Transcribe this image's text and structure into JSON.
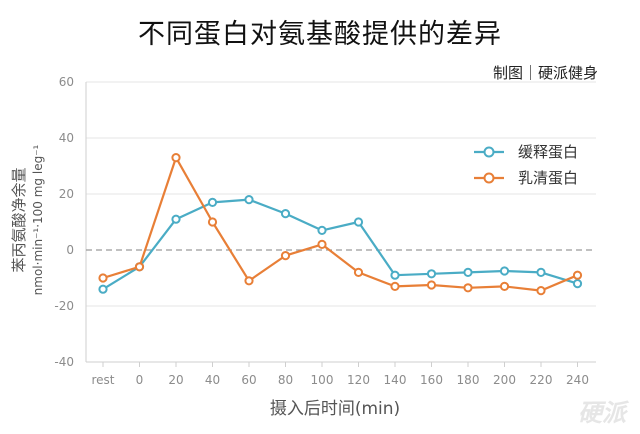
{
  "title": "不同蛋白对氨基酸提供的差异",
  "credit": "制图｜硬派健身",
  "watermark": "硬派",
  "chart_data": {
    "type": "line",
    "categories": [
      "rest",
      "0",
      "20",
      "40",
      "60",
      "80",
      "100",
      "120",
      "140",
      "160",
      "180",
      "200",
      "220",
      "240"
    ],
    "series": [
      {
        "name": "缓释蛋白",
        "color": "#4aacc5",
        "values": [
          -14,
          -6,
          11,
          17,
          18,
          13,
          7,
          10,
          -9,
          -8.5,
          -8,
          -7.5,
          -8,
          -12
        ]
      },
      {
        "name": "乳清蛋白",
        "color": "#e87f37",
        "values": [
          -10,
          -6,
          33,
          10,
          -11,
          -2,
          2,
          -8,
          -13,
          -12.5,
          -13.5,
          -13,
          -14.5,
          -9
        ]
      }
    ],
    "xlabel": "摄入后时间(min)",
    "ylabel": "苯丙氨酸净余量",
    "ylabel_unit": "nmol·min⁻¹·100 mg leg⁻¹",
    "ylim": [
      -40,
      60
    ],
    "yticks": [
      -40,
      -20,
      0,
      20,
      40,
      60
    ],
    "reference_line": {
      "y": 0,
      "style": "dashed",
      "color": "#9a9a9a"
    },
    "grid": "horizontal",
    "legend_position": "right"
  }
}
